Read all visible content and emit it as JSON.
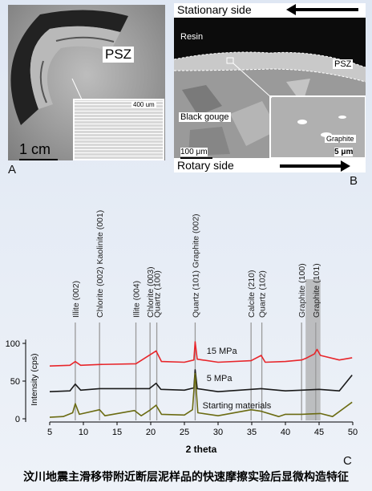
{
  "panel_a": {
    "letter": "A",
    "psz_label": "PSZ",
    "inset_scale": "400 um",
    "scale_label": "1 cm"
  },
  "panel_b": {
    "letter": "B",
    "stationary_label": "Stationary side",
    "rotary_label": "Rotary side",
    "resin_label": "Resin",
    "psz_label": "PSZ",
    "gouge_label": "Black gouge",
    "graphite_label": "Graphite",
    "scale_main": "100 μm",
    "scale_inset": "5 μm"
  },
  "panel_c": {
    "letter": "C",
    "chart_data": {
      "type": "line",
      "xlabel": "2 theta",
      "ylabel": "Intensity (cps)",
      "xlim": [
        5,
        50
      ],
      "ylim": [
        0,
        110
      ],
      "xticks": [
        5,
        10,
        15,
        20,
        25,
        30,
        35,
        40,
        45,
        50
      ],
      "yticks": [
        0,
        50,
        100
      ],
      "series": [
        {
          "name": "15 MPa",
          "color": "#e8262b",
          "offset": 70,
          "points": [
            [
              5,
              70
            ],
            [
              8,
              71
            ],
            [
              8.8,
              76
            ],
            [
              9.6,
              71
            ],
            [
              12.4,
              72
            ],
            [
              17.8,
              73
            ],
            [
              20.8,
              90
            ],
            [
              21.6,
              76
            ],
            [
              25,
              75
            ],
            [
              26.4,
              78
            ],
            [
              26.6,
              102
            ],
            [
              26.9,
              79
            ],
            [
              30,
              75
            ],
            [
              34.9,
              77
            ],
            [
              36.4,
              84
            ],
            [
              37,
              75
            ],
            [
              40,
              76
            ],
            [
              42.4,
              78
            ],
            [
              43,
              80
            ],
            [
              44.3,
              86
            ],
            [
              44.7,
              92
            ],
            [
              45.2,
              84
            ],
            [
              48,
              78
            ],
            [
              49.9,
              81
            ]
          ]
        },
        {
          "name": "5 MPa",
          "color": "#1a1a1a",
          "offset": 35,
          "points": [
            [
              5,
              36
            ],
            [
              8,
              37
            ],
            [
              8.8,
              46
            ],
            [
              9.6,
              38
            ],
            [
              12.4,
              40
            ],
            [
              17.8,
              40
            ],
            [
              19.8,
              40
            ],
            [
              20.8,
              47
            ],
            [
              21.5,
              39
            ],
            [
              25,
              38
            ],
            [
              26.4,
              41
            ],
            [
              26.6,
              65
            ],
            [
              26.9,
              40
            ],
            [
              30,
              36
            ],
            [
              34.9,
              39
            ],
            [
              36.4,
              40
            ],
            [
              40,
              37
            ],
            [
              42.4,
              38
            ],
            [
              45,
              39
            ],
            [
              48,
              37
            ],
            [
              49.9,
              58
            ]
          ]
        },
        {
          "name": "Starting materials",
          "color": "#6b6b12",
          "offset": 0,
          "points": [
            [
              5,
              2
            ],
            [
              7,
              3
            ],
            [
              8.4,
              8
            ],
            [
              8.8,
              20
            ],
            [
              9.4,
              6
            ],
            [
              12.4,
              12
            ],
            [
              13.2,
              4
            ],
            [
              17.6,
              11
            ],
            [
              18.6,
              4
            ],
            [
              19.8,
              11
            ],
            [
              20.8,
              18
            ],
            [
              21.6,
              6
            ],
            [
              25,
              5
            ],
            [
              26.2,
              12
            ],
            [
              26.6,
              60
            ],
            [
              27,
              8
            ],
            [
              30,
              4
            ],
            [
              34.9,
              12
            ],
            [
              36.4,
              10
            ],
            [
              39,
              3
            ],
            [
              40,
              6
            ],
            [
              42.4,
              6
            ],
            [
              45.2,
              7
            ],
            [
              47,
              3
            ],
            [
              49.9,
              22
            ]
          ]
        }
      ],
      "reference_lines": [
        {
          "x": 8.8,
          "label": "Illite (002)"
        },
        {
          "x": 12.4,
          "label": "Chlorite (002) Kaolinite (001)"
        },
        {
          "x": 17.8,
          "label": "Illite (004)"
        },
        {
          "x": 19.9,
          "label": "Chlorite (003)"
        },
        {
          "x": 20.9,
          "label": "Quartz (100)"
        },
        {
          "x": 26.6,
          "label": "Quartz (101) Graphite (002)"
        },
        {
          "x": 34.9,
          "label": "Calcite (210)"
        },
        {
          "x": 36.5,
          "label": "Quartz (102)"
        },
        {
          "x": 42.4,
          "label": "Graphite (100)"
        },
        {
          "x": 44.5,
          "label": "Graphite (101)"
        }
      ],
      "shaded_band": [
        43.0,
        45.2
      ]
    }
  },
  "caption": "汶川地震主滑移带附近断层泥样品的快速摩擦实验后显微构造特征"
}
